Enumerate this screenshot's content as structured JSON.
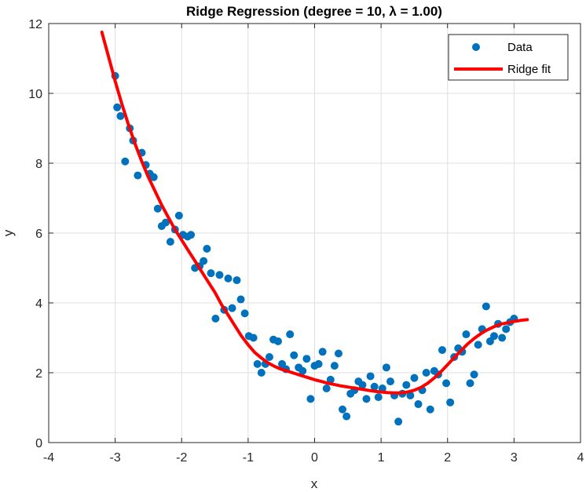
{
  "chart_data": {
    "type": "scatter",
    "title": "Ridge Regression (degree = 10, λ = 1.00)",
    "xlabel": "x",
    "ylabel": "y",
    "xlim": [
      -4,
      4
    ],
    "ylim": [
      0,
      12
    ],
    "xticks": [
      -4,
      -3,
      -2,
      -1,
      0,
      1,
      2,
      3,
      4
    ],
    "yticks": [
      0,
      2,
      4,
      6,
      8,
      10,
      12
    ],
    "grid": true,
    "legend_position": "top-right",
    "series": [
      {
        "name": "Data",
        "kind": "scatter",
        "color": "#0072BD",
        "points": [
          [
            -3.0,
            10.5
          ],
          [
            -2.97,
            9.6
          ],
          [
            -2.92,
            9.35
          ],
          [
            -2.85,
            8.05
          ],
          [
            -2.78,
            9.0
          ],
          [
            -2.73,
            8.65
          ],
          [
            -2.66,
            7.65
          ],
          [
            -2.6,
            8.3
          ],
          [
            -2.54,
            7.95
          ],
          [
            -2.48,
            7.7
          ],
          [
            -2.42,
            7.6
          ],
          [
            -2.36,
            6.7
          ],
          [
            -2.3,
            6.2
          ],
          [
            -2.24,
            6.3
          ],
          [
            -2.17,
            5.75
          ],
          [
            -2.1,
            6.1
          ],
          [
            -2.04,
            6.5
          ],
          [
            -1.98,
            5.95
          ],
          [
            -1.91,
            5.9
          ],
          [
            -1.86,
            5.95
          ],
          [
            -1.8,
            5.0
          ],
          [
            -1.73,
            5.05
          ],
          [
            -1.67,
            5.2
          ],
          [
            -1.62,
            5.55
          ],
          [
            -1.56,
            4.85
          ],
          [
            -1.49,
            3.55
          ],
          [
            -1.43,
            4.8
          ],
          [
            -1.36,
            3.8
          ],
          [
            -1.3,
            4.7
          ],
          [
            -1.24,
            3.85
          ],
          [
            -1.17,
            4.65
          ],
          [
            -1.11,
            4.1
          ],
          [
            -1.05,
            3.7
          ],
          [
            -0.99,
            3.05
          ],
          [
            -0.92,
            3.0
          ],
          [
            -0.86,
            2.25
          ],
          [
            -0.8,
            2.0
          ],
          [
            -0.74,
            2.25
          ],
          [
            -0.68,
            2.45
          ],
          [
            -0.62,
            2.95
          ],
          [
            -0.55,
            2.9
          ],
          [
            -0.49,
            2.25
          ],
          [
            -0.43,
            2.1
          ],
          [
            -0.37,
            3.1
          ],
          [
            -0.31,
            2.5
          ],
          [
            -0.24,
            2.15
          ],
          [
            -0.18,
            2.05
          ],
          [
            -0.12,
            2.4
          ],
          [
            -0.06,
            1.25
          ],
          [
            0.0,
            2.2
          ],
          [
            0.06,
            2.25
          ],
          [
            0.12,
            2.6
          ],
          [
            0.18,
            1.55
          ],
          [
            0.24,
            1.8
          ],
          [
            0.3,
            2.2
          ],
          [
            0.36,
            2.55
          ],
          [
            0.42,
            0.95
          ],
          [
            0.48,
            0.75
          ],
          [
            0.54,
            1.4
          ],
          [
            0.6,
            1.5
          ],
          [
            0.66,
            1.75
          ],
          [
            0.72,
            1.65
          ],
          [
            0.78,
            1.25
          ],
          [
            0.84,
            1.9
          ],
          [
            0.9,
            1.6
          ],
          [
            0.96,
            1.3
          ],
          [
            1.02,
            1.55
          ],
          [
            1.08,
            2.15
          ],
          [
            1.14,
            1.75
          ],
          [
            1.2,
            1.35
          ],
          [
            1.26,
            0.6
          ],
          [
            1.32,
            1.4
          ],
          [
            1.38,
            1.65
          ],
          [
            1.44,
            1.35
          ],
          [
            1.5,
            1.85
          ],
          [
            1.56,
            1.1
          ],
          [
            1.62,
            1.5
          ],
          [
            1.68,
            2.0
          ],
          [
            1.74,
            0.95
          ],
          [
            1.8,
            2.05
          ],
          [
            1.86,
            1.95
          ],
          [
            1.92,
            2.65
          ],
          [
            1.98,
            1.7
          ],
          [
            2.04,
            1.15
          ],
          [
            2.1,
            2.45
          ],
          [
            2.16,
            2.7
          ],
          [
            2.22,
            2.6
          ],
          [
            2.28,
            3.1
          ],
          [
            2.34,
            1.7
          ],
          [
            2.4,
            1.95
          ],
          [
            2.46,
            2.8
          ],
          [
            2.52,
            3.25
          ],
          [
            2.58,
            3.9
          ],
          [
            2.64,
            2.9
          ],
          [
            2.7,
            3.05
          ],
          [
            2.76,
            3.4
          ],
          [
            2.82,
            3.0
          ],
          [
            2.88,
            3.25
          ],
          [
            2.94,
            3.45
          ],
          [
            3.0,
            3.55
          ]
        ]
      },
      {
        "name": "Ridge fit",
        "kind": "line",
        "color": "#FF0000",
        "points": [
          [
            -3.2,
            11.75
          ],
          [
            -3.1,
            11.05
          ],
          [
            -3.0,
            10.35
          ],
          [
            -2.9,
            9.7
          ],
          [
            -2.8,
            9.1
          ],
          [
            -2.7,
            8.55
          ],
          [
            -2.6,
            8.05
          ],
          [
            -2.5,
            7.6
          ],
          [
            -2.4,
            7.2
          ],
          [
            -2.3,
            6.8
          ],
          [
            -2.2,
            6.45
          ],
          [
            -2.1,
            6.1
          ],
          [
            -2.0,
            5.8
          ],
          [
            -1.9,
            5.5
          ],
          [
            -1.8,
            5.2
          ],
          [
            -1.7,
            4.9
          ],
          [
            -1.6,
            4.6
          ],
          [
            -1.5,
            4.3
          ],
          [
            -1.4,
            3.95
          ],
          [
            -1.3,
            3.65
          ],
          [
            -1.2,
            3.35
          ],
          [
            -1.1,
            3.05
          ],
          [
            -1.0,
            2.8
          ],
          [
            -0.9,
            2.58
          ],
          [
            -0.8,
            2.42
          ],
          [
            -0.7,
            2.28
          ],
          [
            -0.6,
            2.18
          ],
          [
            -0.5,
            2.1
          ],
          [
            -0.4,
            2.04
          ],
          [
            -0.3,
            1.98
          ],
          [
            -0.2,
            1.92
          ],
          [
            -0.1,
            1.86
          ],
          [
            0.0,
            1.8
          ],
          [
            0.1,
            1.75
          ],
          [
            0.2,
            1.7
          ],
          [
            0.3,
            1.66
          ],
          [
            0.4,
            1.62
          ],
          [
            0.5,
            1.59
          ],
          [
            0.6,
            1.56
          ],
          [
            0.7,
            1.53
          ],
          [
            0.8,
            1.5
          ],
          [
            0.9,
            1.47
          ],
          [
            1.0,
            1.45
          ],
          [
            1.1,
            1.43
          ],
          [
            1.2,
            1.42
          ],
          [
            1.3,
            1.42
          ],
          [
            1.4,
            1.45
          ],
          [
            1.5,
            1.5
          ],
          [
            1.6,
            1.58
          ],
          [
            1.7,
            1.7
          ],
          [
            1.8,
            1.85
          ],
          [
            1.9,
            2.03
          ],
          [
            2.0,
            2.23
          ],
          [
            2.1,
            2.43
          ],
          [
            2.2,
            2.63
          ],
          [
            2.3,
            2.82
          ],
          [
            2.4,
            2.98
          ],
          [
            2.5,
            3.12
          ],
          [
            2.6,
            3.23
          ],
          [
            2.7,
            3.32
          ],
          [
            2.8,
            3.39
          ],
          [
            2.9,
            3.43
          ],
          [
            3.0,
            3.47
          ],
          [
            3.1,
            3.5
          ],
          [
            3.2,
            3.52
          ]
        ]
      }
    ]
  }
}
